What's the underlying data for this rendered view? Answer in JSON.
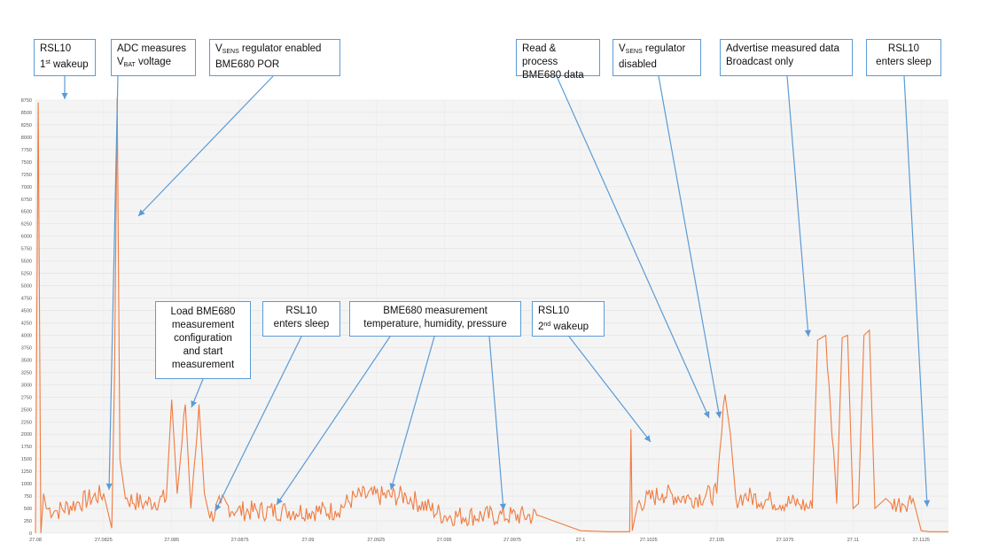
{
  "chart_data": {
    "type": "line",
    "x_unit": "s",
    "xlim": [
      27.08,
      27.1135
    ],
    "ylim": [
      0,
      8750
    ],
    "y_ticks": [
      0,
      250,
      500,
      750,
      1000,
      1250,
      1500,
      1750,
      2000,
      2250,
      2500,
      2750,
      3000,
      3250,
      3500,
      3750,
      4000,
      4250,
      4500,
      4750,
      5000,
      5250,
      5500,
      5750,
      6000,
      6250,
      6500,
      6750,
      7000,
      7250,
      7500,
      7750,
      8000,
      8250,
      8500,
      8750
    ],
    "x_tick_labels": [
      "27.08",
      "27.0825",
      "27.085",
      "27.0875",
      "27.09",
      "27.0925",
      "27.095",
      "27.0975",
      "27.1",
      "27.1025",
      "27.105",
      "27.1075",
      "27.11",
      "27.1125"
    ],
    "grid": true,
    "line_color": "#f07b3f",
    "series": [
      {
        "name": "",
        "x": [
          27.08,
          27.0801,
          27.0802,
          27.0803,
          27.0804,
          27.0808,
          27.0815,
          27.0825,
          27.0828,
          27.0829,
          27.083,
          27.0831,
          27.0833,
          27.084,
          27.0848,
          27.085,
          27.0852,
          27.0855,
          27.0857,
          27.086,
          27.0862,
          27.0864,
          27.0868,
          27.0874,
          27.0892,
          27.091,
          27.0918,
          27.0936,
          27.095,
          27.097,
          27.0985,
          27.1,
          27.101,
          27.1018,
          27.10185,
          27.1019,
          27.1021,
          27.103,
          27.104,
          27.105,
          27.1053,
          27.1055,
          27.1057,
          27.106,
          27.107,
          27.108,
          27.1085,
          27.1087,
          27.109,
          27.1094,
          27.1096,
          27.1098,
          27.11,
          27.1102,
          27.1104,
          27.1106,
          27.1108,
          27.111,
          27.1112,
          27.1114,
          27.1118,
          27.1122,
          27.1125,
          27.1128,
          27.1135
        ],
        "y": [
          0,
          8700,
          0,
          800,
          500,
          450,
          600,
          800,
          100,
          3200,
          8800,
          1500,
          700,
          600,
          700,
          2700,
          800,
          2600,
          500,
          2600,
          800,
          300,
          600,
          450,
          450,
          450,
          750,
          750,
          350,
          350,
          350,
          50,
          30,
          30,
          2100,
          50,
          600,
          800,
          700,
          800,
          2800,
          2000,
          700,
          750,
          650,
          600,
          500,
          3900,
          4000,
          600,
          3950,
          4000,
          500,
          600,
          4000,
          4100,
          500,
          600,
          700,
          600,
          600,
          700,
          50,
          30,
          30
        ]
      }
    ],
    "annotations": [
      {
        "id": "rsl10-first-wakeup",
        "l1": "RSL10",
        "l2_pre": "1",
        "l2_sup": "st",
        "l2_post": " wakeup"
      },
      {
        "id": "adc-measures",
        "l1": "ADC measures",
        "l2_pre": "V",
        "l2_sub": "BAT",
        "l2_post": " voltage"
      },
      {
        "id": "vsens-enabled",
        "l1_pre": "V",
        "l1_sub": "SENS",
        "l1_post": " regulator enabled",
        "l2": "BME680 POR"
      },
      {
        "id": "load-bme680",
        "lines": [
          "Load BME680",
          "measurement",
          "configuration",
          "and start",
          "measurement"
        ]
      },
      {
        "id": "rsl10-enters-sleep-1",
        "l1": "RSL10",
        "l2": "enters sleep"
      },
      {
        "id": "bme680-measurement",
        "l1": "BME680 measurement",
        "l2": "temperature, humidity, pressure"
      },
      {
        "id": "rsl10-second-wakeup",
        "l1": "RSL10",
        "l2_pre": "2",
        "l2_sup": "nd",
        "l2_post": " wakeup"
      },
      {
        "id": "read-process",
        "l1": "Read & process",
        "l2": "BME680 data"
      },
      {
        "id": "vsens-disabled",
        "l1_pre": "V",
        "l1_sub": "SENS",
        "l1_post": " regulator",
        "l2": "disabled"
      },
      {
        "id": "advertise",
        "l1": "Advertise measured data",
        "l2": "Broadcast only"
      },
      {
        "id": "rsl10-enters-sleep-2",
        "l1": "RSL10",
        "l2": "enters sleep"
      }
    ]
  }
}
